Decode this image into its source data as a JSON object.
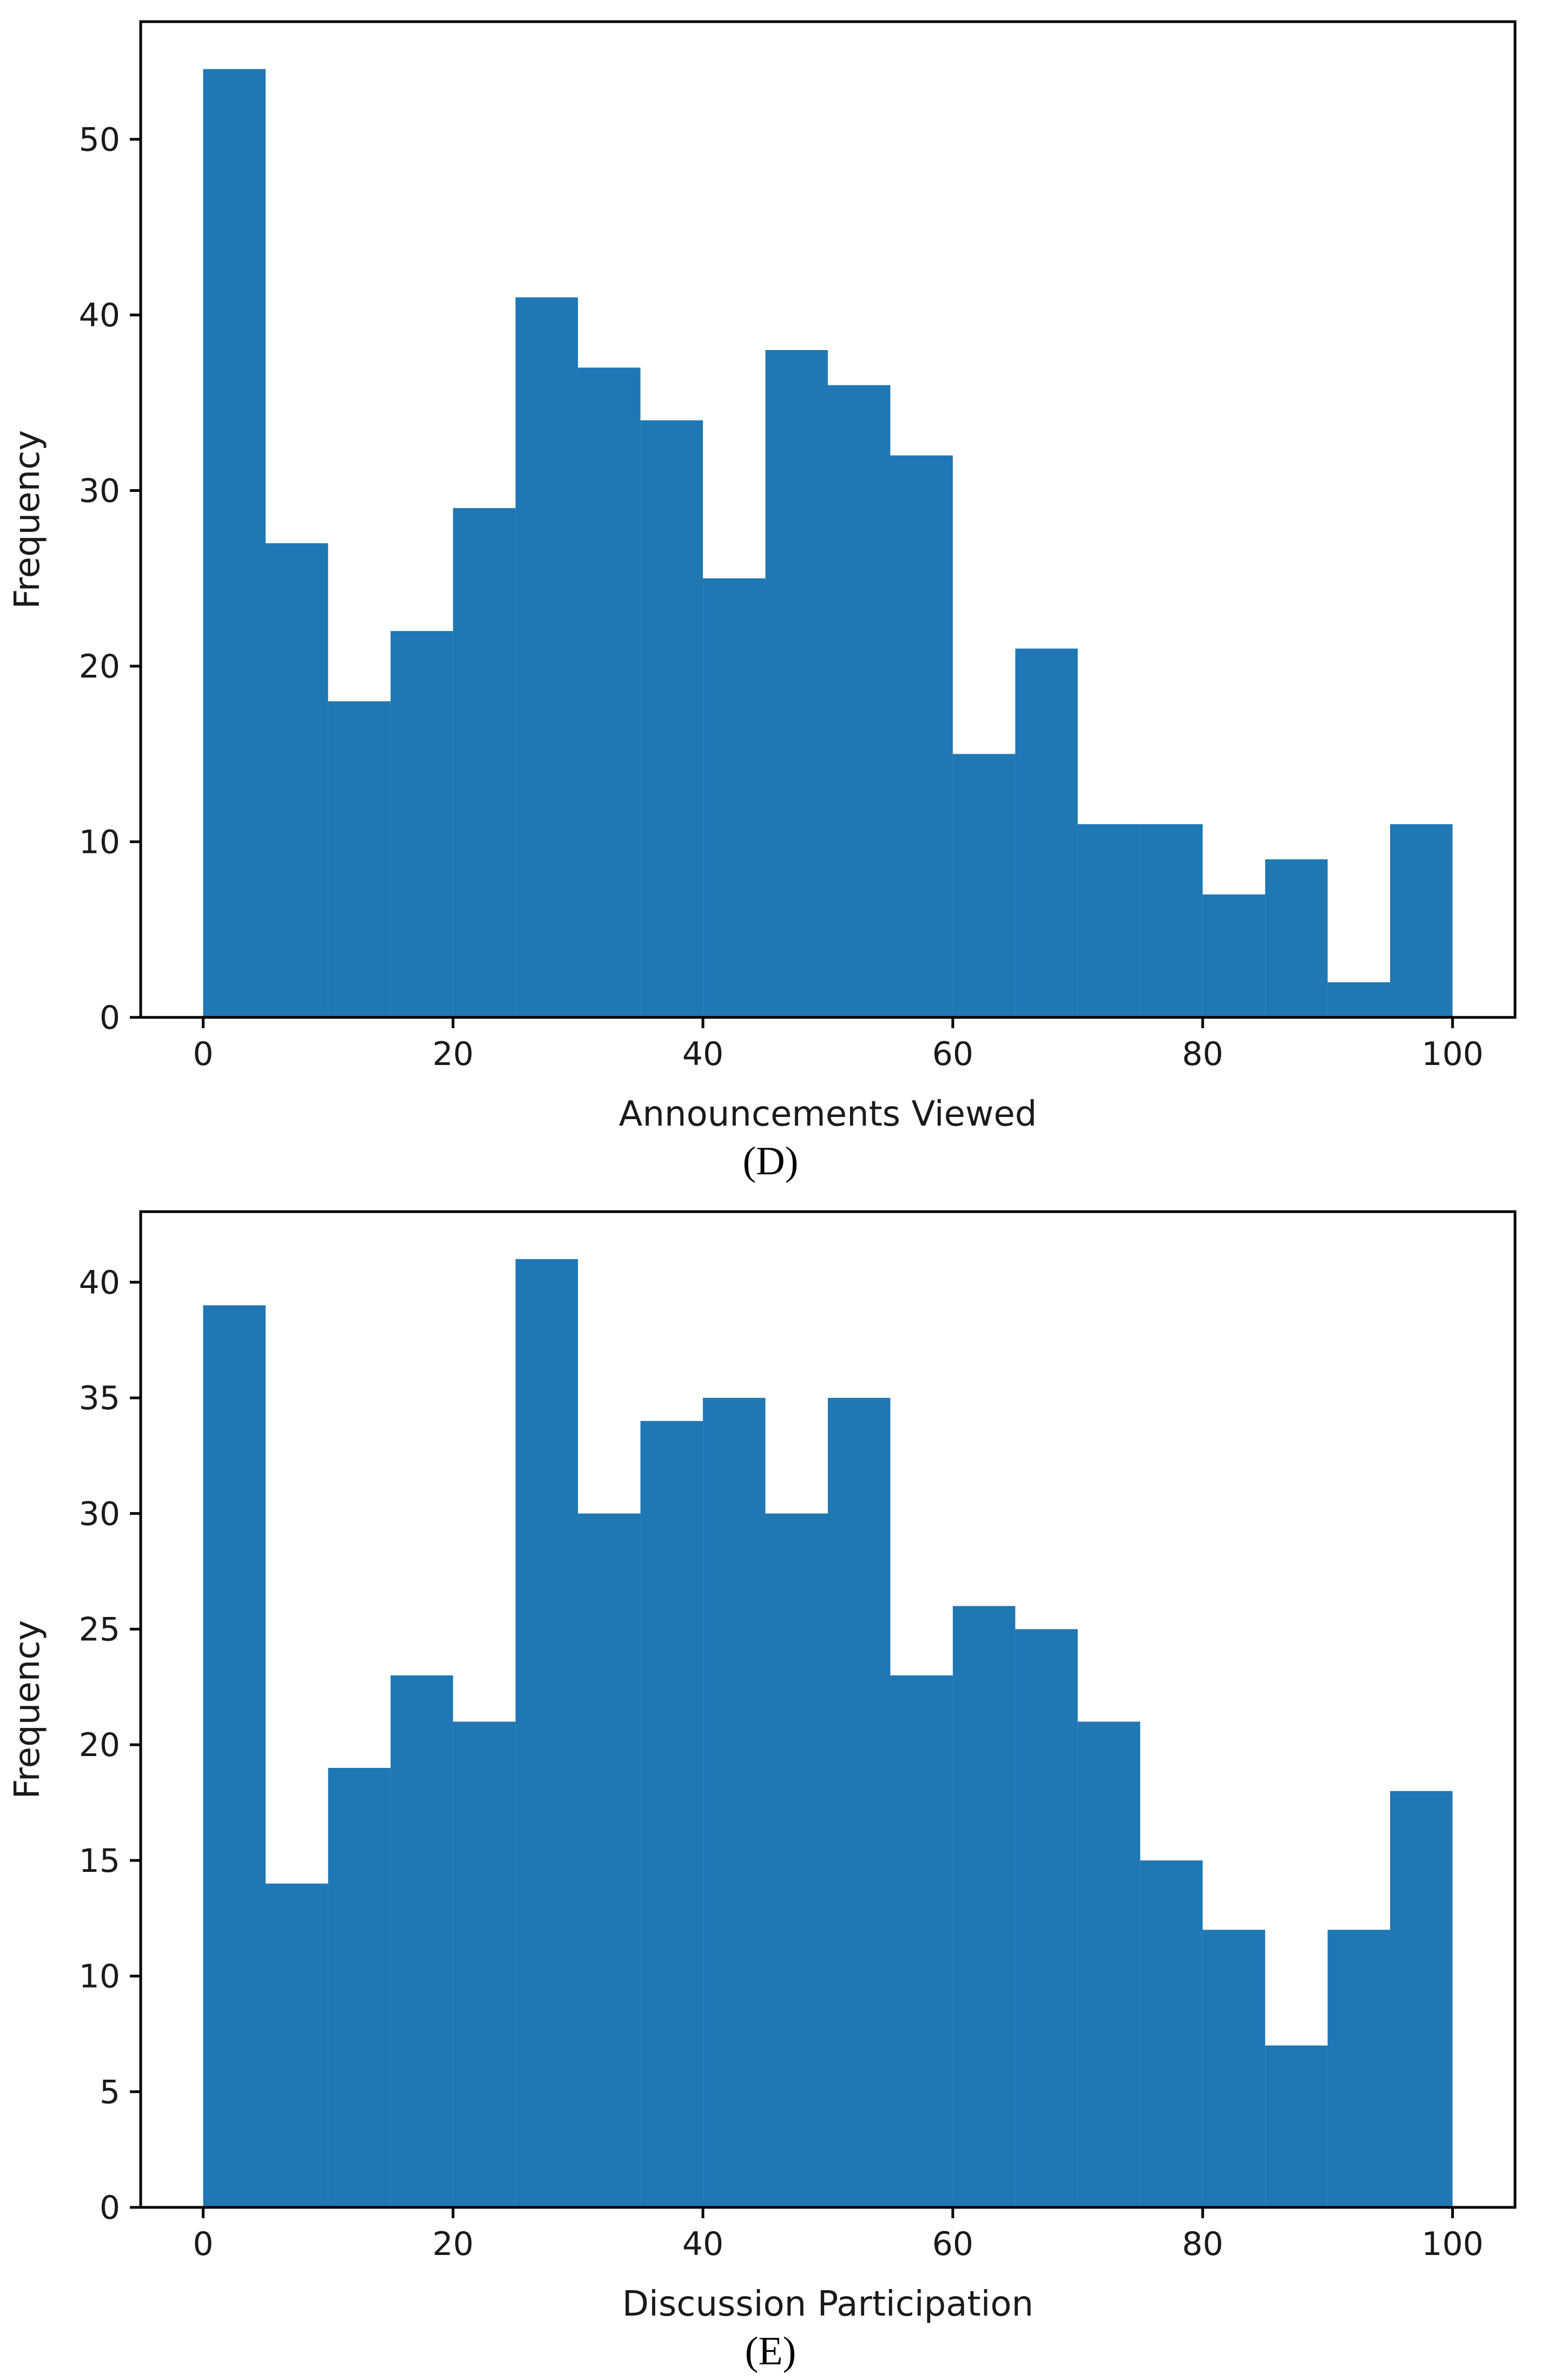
{
  "figure": {
    "background_color": "#ffffff",
    "spine_color": "#000000",
    "tick_text_color": "#1a1a1a"
  },
  "chart_data": [
    {
      "type": "bar",
      "subtype": "histogram",
      "title": "",
      "xlabel": "Announcements Viewed",
      "ylabel": "Frequency",
      "caption": "(D)",
      "bar_color": "#1f77b4",
      "bin_edges": [
        0,
        5,
        10,
        15,
        20,
        25,
        30,
        35,
        40,
        45,
        50,
        55,
        60,
        65,
        70,
        75,
        80,
        85,
        90,
        95,
        100
      ],
      "values": [
        54,
        27,
        18,
        22,
        29,
        41,
        37,
        34,
        25,
        38,
        36,
        32,
        15,
        21,
        11,
        11,
        7,
        9,
        2,
        11
      ],
      "x_ticks": [
        0,
        20,
        40,
        60,
        80,
        100
      ],
      "y_ticks": [
        0,
        10,
        20,
        30,
        40,
        50
      ],
      "xlim": [
        -5,
        105
      ],
      "ylim": [
        0,
        56.7
      ],
      "grid": false,
      "legend": null
    },
    {
      "type": "bar",
      "subtype": "histogram",
      "title": "",
      "xlabel": "Discussion Participation",
      "ylabel": "Frequency",
      "caption": "(E)",
      "bar_color": "#1f77b4",
      "bin_edges": [
        0,
        5,
        10,
        15,
        20,
        25,
        30,
        35,
        40,
        45,
        50,
        55,
        60,
        65,
        70,
        75,
        80,
        85,
        90,
        95,
        100
      ],
      "values": [
        39,
        14,
        19,
        23,
        21,
        41,
        30,
        34,
        35,
        30,
        35,
        23,
        26,
        25,
        21,
        15,
        12,
        7,
        12,
        18
      ],
      "x_ticks": [
        0,
        20,
        40,
        60,
        80,
        100
      ],
      "y_ticks": [
        0,
        5,
        10,
        15,
        20,
        25,
        30,
        35,
        40
      ],
      "xlim": [
        -5,
        105
      ],
      "ylim": [
        0,
        43.05
      ],
      "grid": false,
      "legend": null
    }
  ]
}
